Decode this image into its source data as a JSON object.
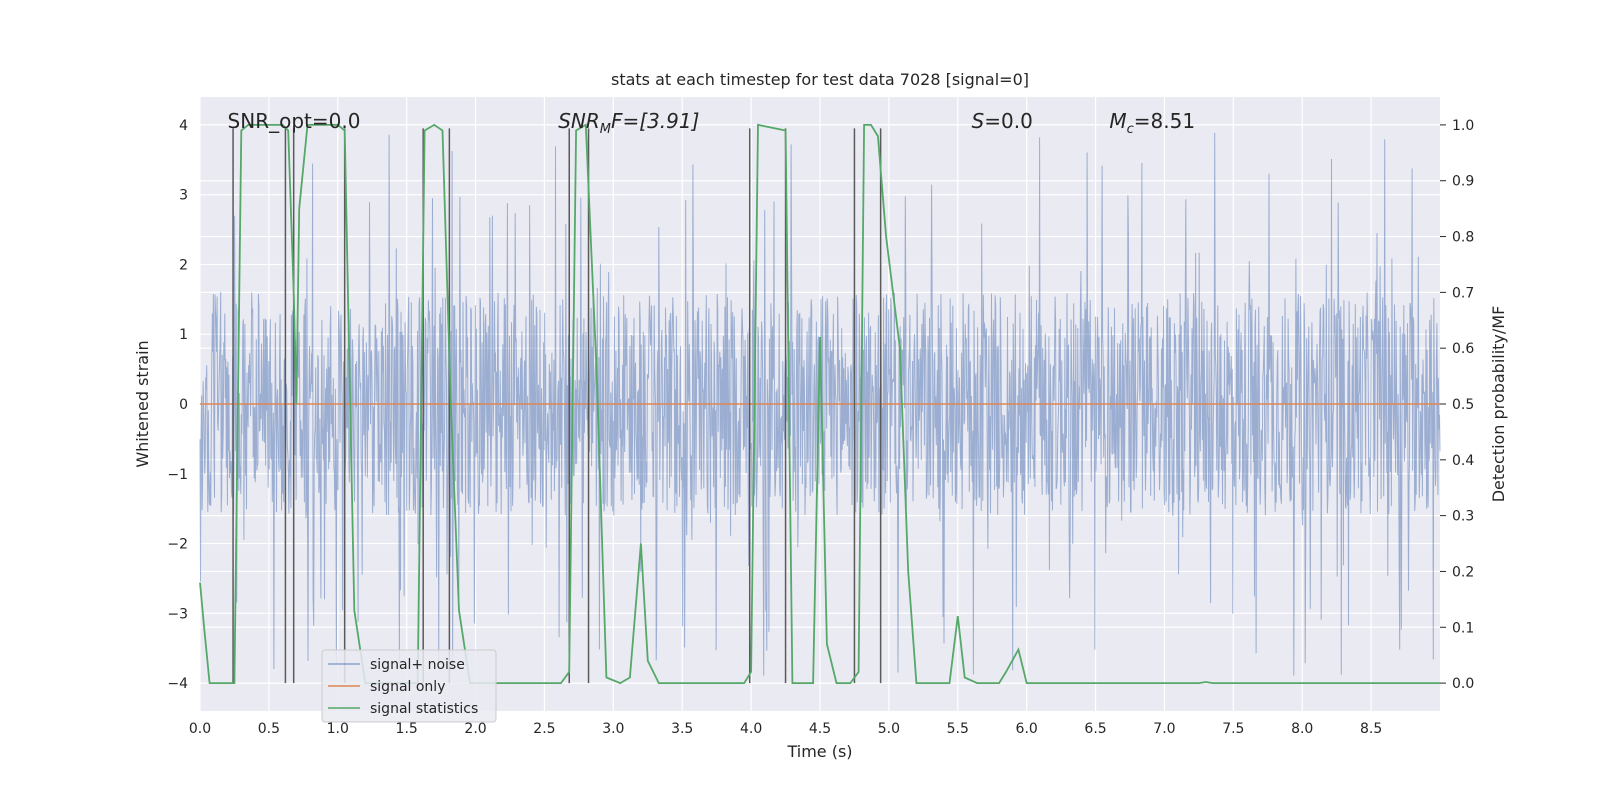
{
  "chart_data": {
    "type": "line",
    "title": "stats at each timestep for test data 7028 [signal=0]",
    "xlabel": "Time (s)",
    "ylabel": "Whitened strain",
    "y2label": "Detection probability/MF",
    "xlim": [
      0.0,
      9.0
    ],
    "ylim": [
      -4.4,
      4.4
    ],
    "y2lim": [
      -0.05,
      1.05
    ],
    "xticks": [
      "0.0",
      "0.5",
      "1.0",
      "1.5",
      "2.0",
      "2.5",
      "3.0",
      "3.5",
      "4.0",
      "4.5",
      "5.0",
      "5.5",
      "6.0",
      "6.5",
      "7.0",
      "7.5",
      "8.0",
      "8.5"
    ],
    "yticks": [
      "−4",
      "−3",
      "−2",
      "−1",
      "0",
      "1",
      "2",
      "3",
      "4"
    ],
    "y2ticks": [
      "0.0",
      "0.1",
      "0.2",
      "0.3",
      "0.4",
      "0.5",
      "0.6",
      "0.7",
      "0.8",
      "0.9",
      "1.0"
    ],
    "grid": true,
    "legend_position": "lower-left",
    "annotations": {
      "snr_opt": "SNR_opt=0.0",
      "snr_mf_main": "SNR",
      "snr_mf_sub": "M",
      "snr_mf_rest": "F=[3.91]",
      "s_main": "S",
      "s_rest": "=0.0",
      "mc_main": "M",
      "mc_sub": "c",
      "mc_rest": "=8.51"
    },
    "series": [
      {
        "name": "signal+ noise",
        "color": "#4c72b0",
        "description_values": "dense noise, approx range -4 to 4",
        "envelope": {
          "typical_max": 1.6,
          "typical_min": -1.6,
          "peak_max": 3.9,
          "peak_min": -4.0
        }
      },
      {
        "name": "signal only",
        "color": "#dd8452",
        "values_constant": 0.0
      },
      {
        "name": "signal statistics",
        "color": "#55a868",
        "x": [
          0.0,
          0.03,
          0.07,
          0.25,
          0.3,
          0.35,
          0.6,
          0.64,
          0.68,
          0.7,
          0.72,
          0.78,
          1.0,
          1.05,
          1.12,
          1.2,
          1.3,
          1.58,
          1.63,
          1.7,
          1.76,
          1.82,
          1.88,
          1.96,
          2.05,
          2.62,
          2.68,
          2.73,
          2.8,
          2.88,
          2.95,
          3.05,
          3.12,
          3.2,
          3.25,
          3.33,
          3.95,
          4.0,
          4.05,
          4.25,
          4.3,
          4.45,
          4.5,
          4.55,
          4.62,
          4.72,
          4.78,
          4.82,
          4.87,
          4.92,
          4.98,
          5.03,
          5.08,
          5.14,
          5.2,
          5.44,
          5.5,
          5.55,
          5.64,
          5.8,
          5.85,
          5.94,
          6.0,
          7.25,
          7.3,
          7.35,
          9.0
        ],
        "y": [
          0.18,
          0.1,
          0.0,
          0.0,
          0.99,
          1.0,
          1.0,
          0.99,
          0.7,
          0.5,
          0.85,
          1.0,
          1.0,
          0.99,
          0.13,
          0.0,
          0.0,
          0.0,
          0.99,
          1.0,
          0.99,
          0.5,
          0.13,
          0.0,
          0.0,
          0.0,
          0.02,
          0.99,
          1.0,
          0.55,
          0.01,
          0.0,
          0.01,
          0.25,
          0.04,
          0.0,
          0.0,
          0.02,
          1.0,
          0.99,
          0.0,
          0.0,
          0.62,
          0.07,
          0.0,
          0.0,
          0.02,
          1.0,
          1.0,
          0.98,
          0.8,
          0.7,
          0.6,
          0.2,
          0.0,
          0.0,
          0.12,
          0.01,
          0.0,
          0.0,
          0.02,
          0.06,
          0.0,
          0.0,
          0.002,
          0.0,
          0.0
        ]
      },
      {
        "name": "event markers",
        "color": "#5a5a5a",
        "x": [
          0.24,
          0.62,
          0.68,
          1.05,
          1.62,
          1.81,
          2.68,
          2.82,
          3.99,
          4.25,
          4.75,
          4.94
        ]
      }
    ]
  }
}
